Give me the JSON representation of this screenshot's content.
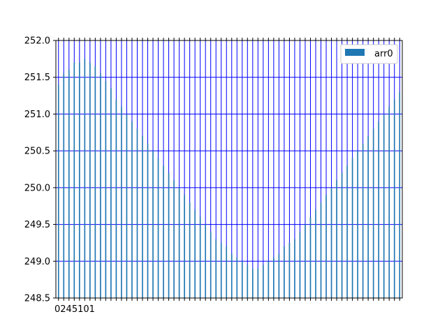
{
  "chart_data": {
    "type": "bar",
    "series": [
      {
        "name": "arr0",
        "color": "#1f77b4",
        "values": [
          251.4,
          251.55,
          251.6,
          251.7,
          251.7,
          251.75,
          251.7,
          251.65,
          251.55,
          251.45,
          251.35,
          251.2,
          251.1,
          251.0,
          250.9,
          250.8,
          250.7,
          250.6,
          250.5,
          250.4,
          250.3,
          250.2,
          250.1,
          250.0,
          249.9,
          249.8,
          249.7,
          249.6,
          249.5,
          249.4,
          249.3,
          249.25,
          249.2,
          249.1,
          249.05,
          249.0,
          248.95,
          248.9,
          248.9,
          248.95,
          249.0,
          249.05,
          249.1,
          249.2,
          249.25,
          249.3,
          249.4,
          249.5,
          249.6,
          249.7,
          249.8,
          249.9,
          250.0,
          250.1,
          250.2,
          250.3,
          250.4,
          250.5,
          250.6,
          250.7,
          250.8,
          250.9,
          251.0,
          251.1,
          251.2,
          251.3
        ]
      }
    ],
    "ylim": [
      248.5,
      252.0
    ],
    "yticks": [
      "248.5",
      "249.0",
      "249.5",
      "250.0",
      "250.5",
      "251.0",
      "251.5",
      "252.0"
    ],
    "xtick_label_text": "0245101",
    "grid": true,
    "grid_color": "#0000ff",
    "legend_position": "top-right"
  }
}
